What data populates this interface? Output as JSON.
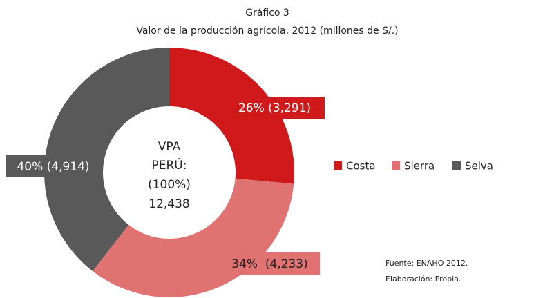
{
  "chart_data": {
    "type": "donut",
    "title": "Gráfico 3",
    "subtitle": "Valor de la producción agrícola, 2012 (millones de S/.)",
    "categories": [
      "Costa",
      "Sierra",
      "Selva"
    ],
    "values": [
      3291,
      4233,
      4914
    ],
    "value_labels": [
      "26% (3,291)",
      "34%  (4,233)",
      "40% (4,914)"
    ],
    "colors": [
      "#d0191b",
      "#e07272",
      "#595959"
    ],
    "center_label": [
      "VPA",
      "PERÚ:",
      "(100%)",
      "12,438"
    ],
    "notes": [
      "Fuente: ENAHO 2012.",
      "Elaboración: Propia."
    ],
    "legend": "right"
  }
}
